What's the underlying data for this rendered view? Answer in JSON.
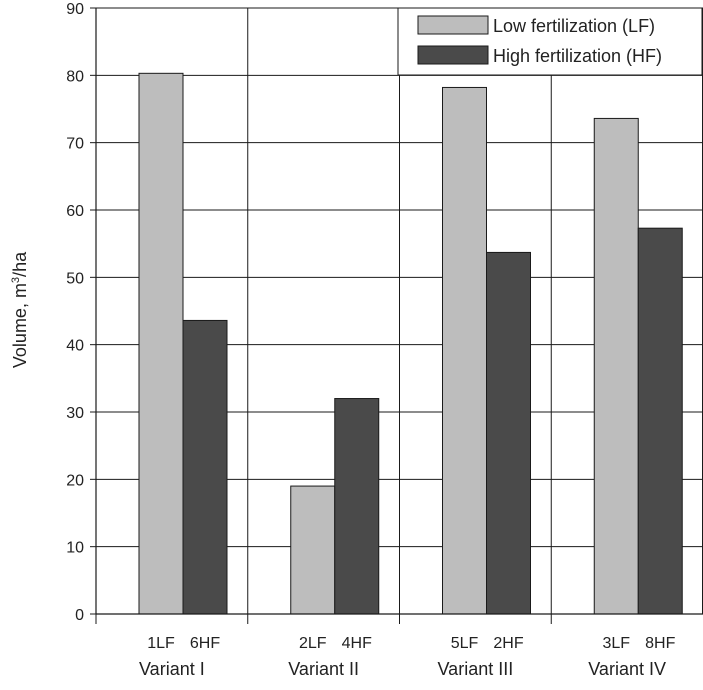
{
  "chart_data": {
    "type": "bar",
    "title": "",
    "ylabel": {
      "prefix": "Volume, m",
      "superscript": "3",
      "suffix": "/ha"
    },
    "ylim": [
      0,
      90
    ],
    "yticks": [
      0,
      10,
      20,
      30,
      40,
      50,
      60,
      70,
      80,
      90
    ],
    "grid": true,
    "legend_position": "top-right",
    "series": [
      {
        "key": "LF",
        "name": "Low fertilization (LF)",
        "color": "#bdbdbd"
      },
      {
        "key": "HF",
        "name": "High fertilization (HF)",
        "color": "#4a4a4a"
      }
    ],
    "groups": [
      {
        "label": "Variant I",
        "bars": [
          {
            "label": "1LF",
            "series": "LF",
            "value": 80.3
          },
          {
            "label": "6HF",
            "series": "HF",
            "value": 43.6
          }
        ]
      },
      {
        "label": "Variant II",
        "bars": [
          {
            "label": "2LF",
            "series": "LF",
            "value": 19.0
          },
          {
            "label": "4HF",
            "series": "HF",
            "value": 32.0
          }
        ]
      },
      {
        "label": "Variant III",
        "bars": [
          {
            "label": "5LF",
            "series": "LF",
            "value": 78.2
          },
          {
            "label": "2HF",
            "series": "HF",
            "value": 53.7
          }
        ]
      },
      {
        "label": "Variant IV",
        "bars": [
          {
            "label": "3LF",
            "series": "LF",
            "value": 73.6
          },
          {
            "label": "8HF",
            "series": "HF",
            "value": 57.3
          }
        ]
      }
    ]
  }
}
